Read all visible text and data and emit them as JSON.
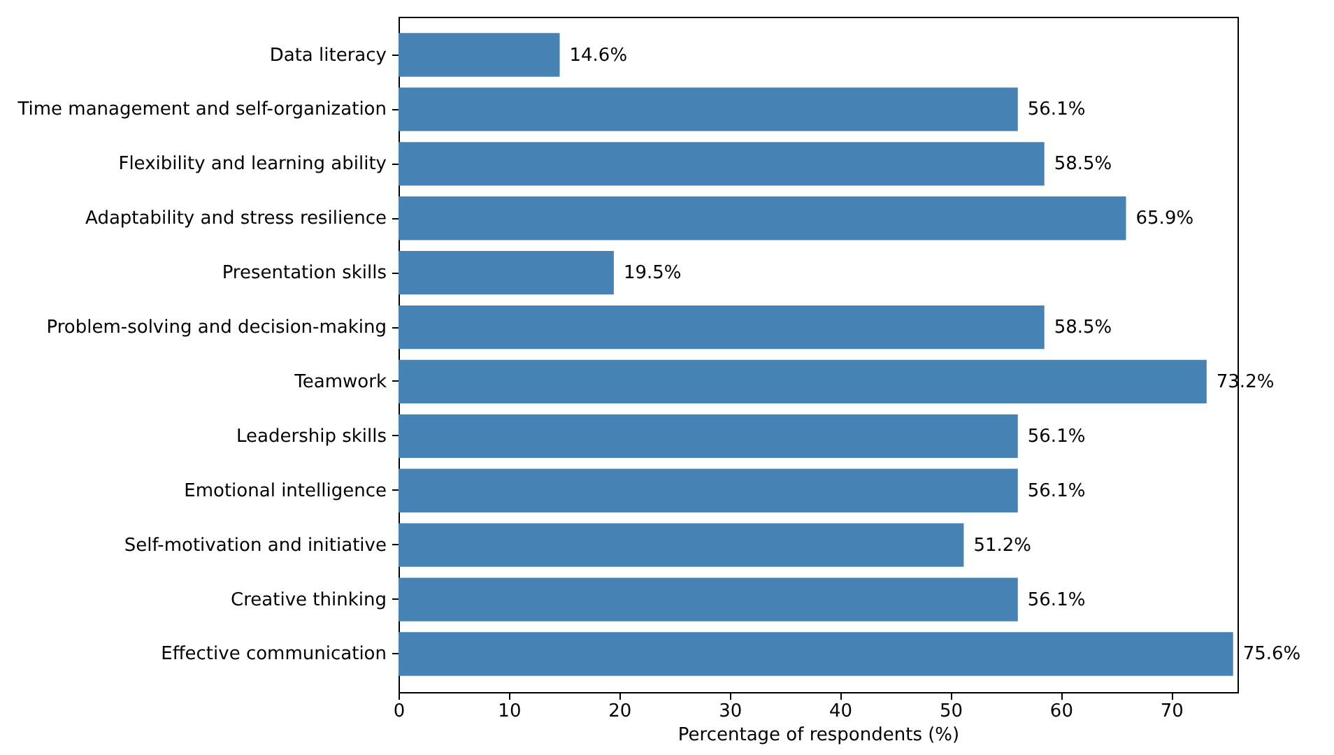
{
  "chart_data": {
    "type": "bar",
    "orientation": "horizontal",
    "xlabel": "Percentage of respondents (%)",
    "categories": [
      "Data literacy",
      "Time management and self-organization",
      "Flexibility and learning ability",
      "Adaptability and stress resilience",
      "Presentation skills",
      "Problem-solving and decision-making",
      "Teamwork",
      "Leadership skills",
      "Emotional intelligence",
      "Self-motivation and initiative",
      "Creative thinking",
      "Effective communication"
    ],
    "values": [
      14.6,
      56.1,
      58.5,
      65.9,
      19.5,
      58.5,
      73.2,
      56.1,
      56.1,
      51.2,
      56.1,
      75.6
    ],
    "value_labels": [
      "14.6%",
      "56.1%",
      "58.5%",
      "65.9%",
      "19.5%",
      "58.5%",
      "73.2%",
      "56.1%",
      "56.1%",
      "51.2%",
      "56.1%",
      "75.6%"
    ],
    "color": "#4682b4",
    "xlim": [
      0,
      76
    ],
    "xticks": [
      0,
      10,
      20,
      30,
      40,
      50,
      60,
      70
    ],
    "grid": false
  }
}
